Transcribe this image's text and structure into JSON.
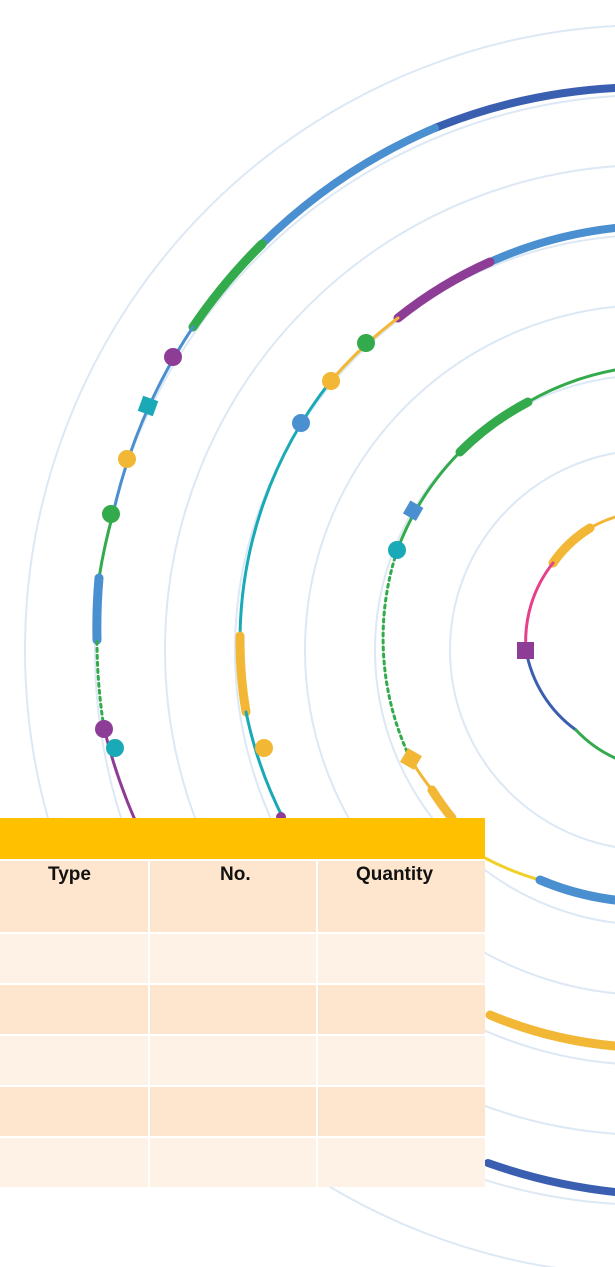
{
  "colors": {
    "header_bar": "#ffc000",
    "header_row": "#fde5ce",
    "row_light": "#fef2e6",
    "row_dark": "#fde5ce",
    "ring_faint": "#dde8f5",
    "blue_dark": "#3a5fb0",
    "blue_mid": "#4a8fd0",
    "green": "#33aa4c",
    "purple": "#8e3d96",
    "yellow": "#f2b735",
    "teal": "#1aa9b6",
    "pink": "#e6408a"
  },
  "table": {
    "columns": [
      "Type",
      "No.",
      "Quantity"
    ],
    "rows": [
      [
        "",
        "",
        ""
      ],
      [
        "",
        "",
        ""
      ],
      [
        "",
        "",
        ""
      ],
      [
        "",
        "",
        ""
      ],
      [
        "",
        "",
        ""
      ]
    ]
  }
}
